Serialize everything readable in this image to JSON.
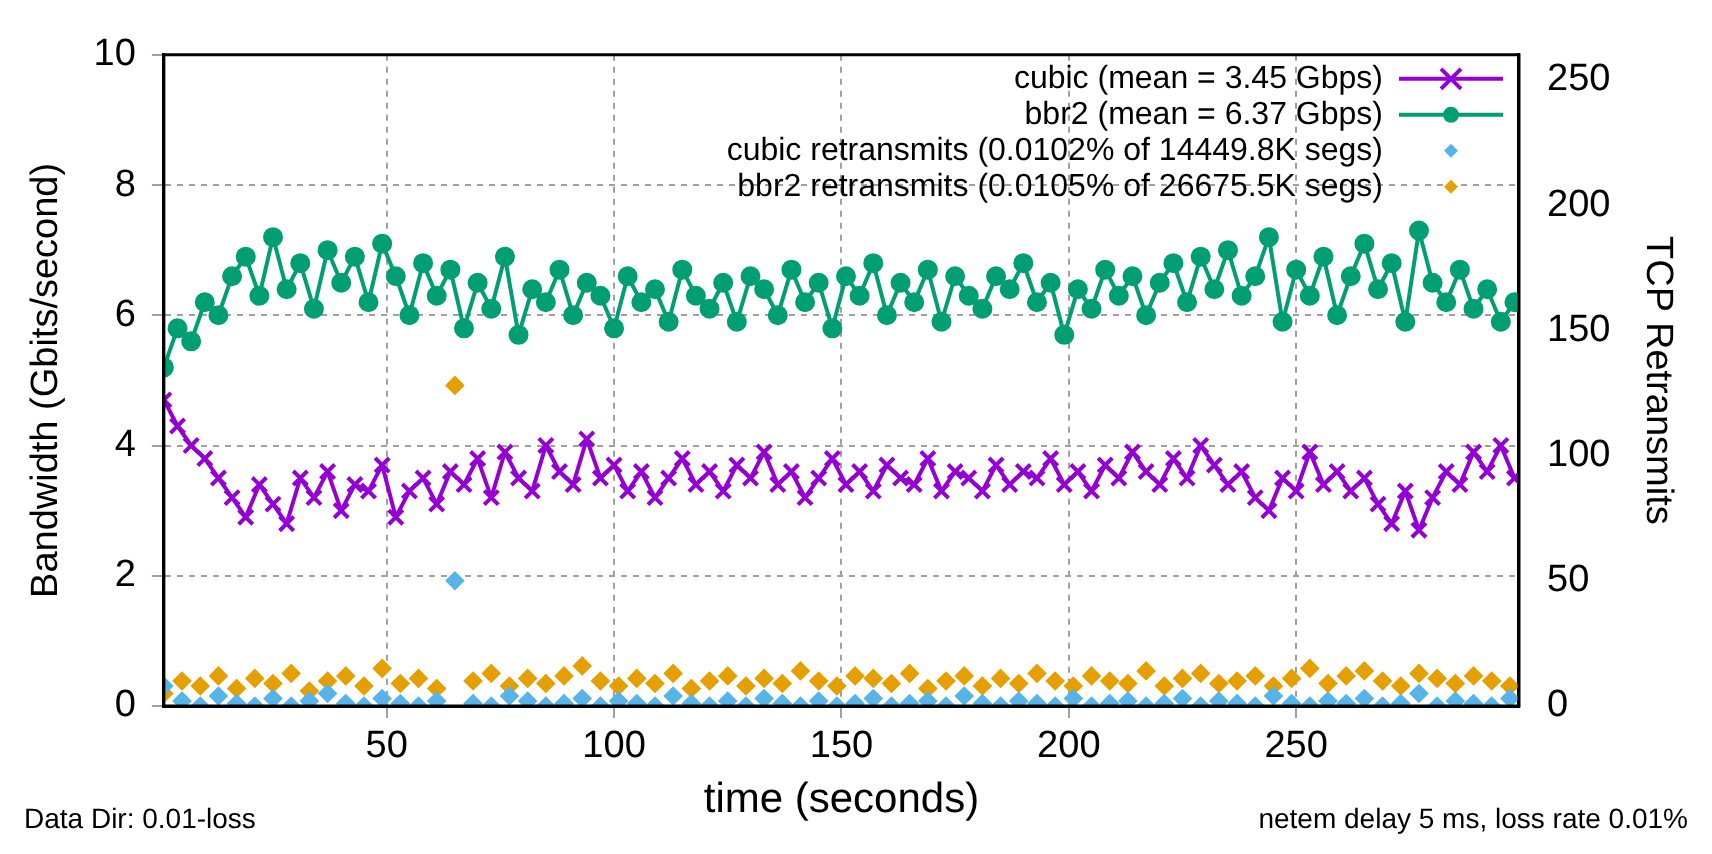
{
  "chart_data": {
    "type": "line",
    "xlabel": "time (seconds)",
    "ylabel": "Bandwidth (Gbits/second)",
    "y2label": "TCP Retransmits",
    "annotations": [
      "Data Dir: 0.01-loss",
      "netem delay 5 ms, loss rate 0.01%"
    ],
    "x": [
      1,
      4,
      7,
      10,
      13,
      16,
      19,
      22,
      25,
      28,
      31,
      34,
      37,
      40,
      43,
      46,
      49,
      52,
      55,
      58,
      61,
      64,
      67,
      70,
      73,
      76,
      79,
      82,
      85,
      88,
      91,
      94,
      97,
      100,
      103,
      106,
      109,
      112,
      115,
      118,
      121,
      124,
      127,
      130,
      133,
      136,
      139,
      142,
      145,
      148,
      151,
      154,
      157,
      160,
      163,
      166,
      169,
      172,
      175,
      178,
      181,
      184,
      187,
      190,
      193,
      196,
      199,
      202,
      205,
      208,
      211,
      214,
      217,
      220,
      223,
      226,
      229,
      232,
      235,
      238,
      241,
      244,
      247,
      250,
      253,
      256,
      259,
      262,
      265,
      268,
      271,
      274,
      277,
      280,
      283,
      286,
      289,
      292,
      295,
      298
    ],
    "xlim": [
      1,
      299
    ],
    "xticks": [
      50,
      100,
      150,
      200,
      250
    ],
    "ylim": [
      0,
      10
    ],
    "yticks": [
      0,
      2,
      4,
      6,
      8,
      10
    ],
    "y2lim": [
      0,
      260
    ],
    "y2ticks": [
      0,
      50,
      100,
      150,
      200,
      250
    ],
    "grid": true,
    "legend": "top right",
    "series": [
      {
        "name": "cubic (mean = 3.45 Gbps)",
        "marker": "cross",
        "color": "#9400d3",
        "values": [
          4.7,
          4.3,
          4.0,
          3.8,
          3.5,
          3.2,
          2.9,
          3.4,
          3.1,
          2.8,
          3.5,
          3.2,
          3.6,
          3.0,
          3.4,
          3.3,
          3.7,
          2.9,
          3.3,
          3.5,
          3.1,
          3.6,
          3.4,
          3.8,
          3.2,
          3.9,
          3.5,
          3.3,
          4.0,
          3.6,
          3.4,
          4.1,
          3.5,
          3.7,
          3.3,
          3.6,
          3.2,
          3.5,
          3.8,
          3.4,
          3.6,
          3.3,
          3.7,
          3.5,
          3.9,
          3.4,
          3.6,
          3.2,
          3.5,
          3.8,
          3.4,
          3.6,
          3.3,
          3.7,
          3.5,
          3.4,
          3.8,
          3.3,
          3.6,
          3.5,
          3.3,
          3.7,
          3.4,
          3.6,
          3.5,
          3.8,
          3.4,
          3.6,
          3.3,
          3.7,
          3.5,
          3.9,
          3.6,
          3.4,
          3.8,
          3.5,
          4.0,
          3.7,
          3.4,
          3.6,
          3.2,
          3.0,
          3.5,
          3.3,
          3.9,
          3.4,
          3.6,
          3.3,
          3.5,
          3.1,
          2.8,
          3.3,
          2.7,
          3.2,
          3.6,
          3.4,
          3.9,
          3.6,
          4.0,
          3.5
        ]
      },
      {
        "name": "bbr2 (mean = 6.37 Gbps)",
        "marker": "circle",
        "color": "#009e73",
        "values": [
          5.2,
          5.8,
          5.6,
          6.2,
          6.0,
          6.6,
          6.9,
          6.3,
          7.2,
          6.4,
          6.8,
          6.1,
          7.0,
          6.5,
          6.9,
          6.2,
          7.1,
          6.6,
          6.0,
          6.8,
          6.3,
          6.7,
          5.8,
          6.5,
          6.1,
          6.9,
          5.7,
          6.4,
          6.2,
          6.7,
          6.0,
          6.5,
          6.3,
          5.8,
          6.6,
          6.2,
          6.4,
          5.9,
          6.7,
          6.3,
          6.1,
          6.5,
          5.9,
          6.6,
          6.4,
          6.0,
          6.7,
          6.2,
          6.5,
          5.8,
          6.6,
          6.3,
          6.8,
          6.0,
          6.5,
          6.2,
          6.7,
          5.9,
          6.6,
          6.3,
          6.1,
          6.6,
          6.4,
          6.8,
          6.2,
          6.5,
          5.7,
          6.4,
          6.1,
          6.7,
          6.3,
          6.6,
          6.0,
          6.5,
          6.8,
          6.2,
          6.9,
          6.4,
          7.0,
          6.3,
          6.6,
          7.2,
          5.9,
          6.7,
          6.3,
          6.9,
          6.0,
          6.6,
          7.1,
          6.4,
          6.8,
          5.9,
          7.3,
          6.5,
          6.2,
          6.7,
          6.1,
          6.4,
          5.9,
          6.2
        ]
      },
      {
        "name": "cubic retransmits (0.0102% of 14449.8K segs)",
        "type": "scatter",
        "marker": "diamond",
        "axis": "y2",
        "color": "#56b4e9",
        "x": [
          1,
          5,
          9,
          13,
          17,
          21,
          25,
          29,
          33,
          37,
          41,
          45,
          49,
          53,
          57,
          61,
          65,
          69,
          73,
          77,
          81,
          85,
          89,
          93,
          97,
          101,
          105,
          109,
          113,
          117,
          121,
          125,
          129,
          133,
          137,
          141,
          145,
          149,
          153,
          157,
          161,
          165,
          169,
          173,
          177,
          181,
          185,
          189,
          193,
          197,
          201,
          205,
          209,
          213,
          217,
          221,
          225,
          229,
          233,
          237,
          241,
          245,
          249,
          253,
          257,
          261,
          265,
          269,
          273,
          277,
          281,
          285,
          289,
          293,
          297
        ],
        "values": [
          8,
          2,
          0,
          4,
          1,
          0,
          3,
          0,
          2,
          5,
          1,
          0,
          3,
          1,
          0,
          2,
          50,
          1,
          0,
          4,
          2,
          0,
          1,
          3,
          0,
          2,
          1,
          0,
          4,
          1,
          0,
          2,
          0,
          3,
          1,
          0,
          2,
          0,
          1,
          3,
          0,
          1,
          2,
          0,
          4,
          1,
          0,
          2,
          1,
          0,
          3,
          0,
          1,
          2,
          0,
          1,
          3,
          0,
          2,
          1,
          0,
          4,
          1,
          0,
          2,
          1,
          3,
          0,
          1,
          5,
          0,
          2,
          1,
          0,
          3
        ]
      },
      {
        "name": "bbr2 retransmits (0.0105% of 26675.5K segs)",
        "type": "scatter",
        "marker": "diamond",
        "axis": "y2",
        "color": "#e69f00",
        "x": [
          1,
          5,
          9,
          13,
          17,
          21,
          25,
          29,
          33,
          37,
          41,
          45,
          49,
          53,
          57,
          61,
          65,
          69,
          73,
          77,
          81,
          85,
          89,
          93,
          97,
          101,
          105,
          109,
          113,
          117,
          121,
          125,
          129,
          133,
          137,
          141,
          145,
          149,
          153,
          157,
          161,
          165,
          169,
          173,
          177,
          181,
          185,
          189,
          193,
          197,
          201,
          205,
          209,
          213,
          217,
          221,
          225,
          229,
          233,
          237,
          241,
          245,
          249,
          253,
          257,
          261,
          265,
          269,
          273,
          277,
          281,
          285,
          289,
          293,
          297
        ],
        "values": [
          5,
          10,
          8,
          12,
          7,
          11,
          9,
          13,
          6,
          10,
          12,
          8,
          15,
          9,
          11,
          7,
          128,
          10,
          13,
          8,
          11,
          9,
          12,
          16,
          10,
          8,
          11,
          9,
          13,
          7,
          10,
          12,
          8,
          11,
          9,
          14,
          10,
          8,
          12,
          11,
          9,
          13,
          7,
          10,
          12,
          8,
          11,
          9,
          13,
          10,
          8,
          12,
          10,
          9,
          14,
          8,
          11,
          13,
          9,
          10,
          12,
          8,
          11,
          15,
          9,
          12,
          14,
          10,
          8,
          13,
          11,
          9,
          12,
          10,
          8
        ]
      }
    ]
  }
}
